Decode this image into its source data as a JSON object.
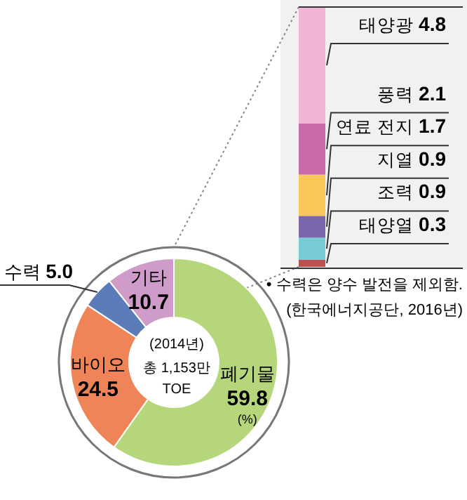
{
  "chart_data": [
    {
      "type": "donut",
      "categories": [
        "폐기물",
        "바이오",
        "수력",
        "기타"
      ],
      "values": [
        59.8,
        24.5,
        5.0,
        10.7
      ],
      "value_labels": [
        "59.8",
        "24.5",
        "5.0",
        "10.7"
      ],
      "colors": [
        "#b6d67c",
        "#ee8457",
        "#5b7bb9",
        "#cf9bc9"
      ],
      "annotations": [
        "(2014년)",
        "총 1,153만",
        "TOE",
        "(%)",
        "• 수력은 양수 발전을 제외함.",
        "(한국에너지공단, 2016년)"
      ]
    },
    {
      "type": "bar",
      "stacked": true,
      "categories": [
        null
      ],
      "series": [
        {
          "name": "태양열",
          "color": "#c0504d",
          "values": [
            0.3
          ],
          "value_labels": [
            "0.3"
          ]
        },
        {
          "name": "조력",
          "color": "#76cbd4",
          "values": [
            0.9
          ],
          "value_labels": [
            "0.9"
          ]
        },
        {
          "name": "지열",
          "color": "#7c67ad",
          "values": [
            0.9
          ],
          "value_labels": [
            "0.9"
          ]
        },
        {
          "name": "연료 전지",
          "color": "#fcc75a",
          "values": [
            1.7
          ],
          "value_labels": [
            "1.7"
          ]
        },
        {
          "name": "풍력",
          "color": "#c96aa8",
          "values": [
            2.1
          ],
          "value_labels": [
            "2.1"
          ]
        },
        {
          "name": "태양광",
          "color": "#f0b4d4",
          "values": [
            4.8
          ],
          "value_labels": [
            "4.8"
          ]
        }
      ]
    }
  ]
}
